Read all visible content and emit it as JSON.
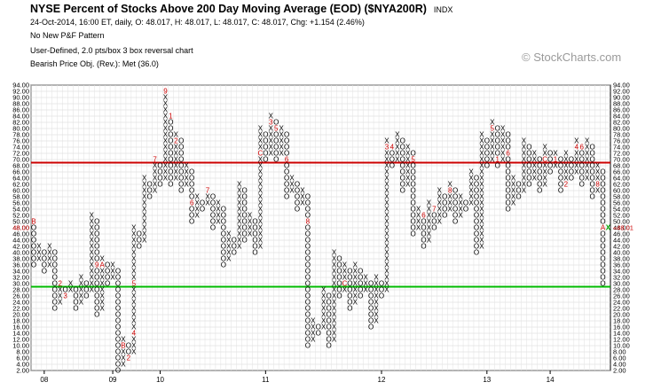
{
  "header": {
    "title": "NYSE Percent of Stocks Above 200 Day Moving Average (EOD) ($NYA200R)",
    "exchange": "INDX",
    "ohlc_line": "24-Oct-2014, 16:00 ET, daily, O: 48.017, H: 48.017, L: 48.017, C: 48.017, Chg: +1.154 (2.46%)",
    "pattern": "No New P&F Pattern",
    "settings": "User-Defined, 2.0 pts/box 3 box reversal chart",
    "objective": "Bearish Price Obj. (Rev.): Met (36.0)"
  },
  "watermark": "© StockCharts.com",
  "chart_data": {
    "type": "point-and-figure",
    "box_size": 2,
    "reversal": 3,
    "y_range": [
      2,
      94
    ],
    "y_ticks": [
      "2.00",
      "4.00",
      "6.00",
      "8.00",
      "10.00",
      "12.00",
      "14.00",
      "16.00",
      "18.00",
      "20.00",
      "22.00",
      "24.00",
      "26.00",
      "28.00",
      "30.00",
      "32.00",
      "34.00",
      "36.00",
      "38.00",
      "40.00",
      "42.00",
      "44.00",
      "46.00",
      "48.00",
      "50.00",
      "52.00",
      "54.00",
      "56.00",
      "58.00",
      "60.00",
      "62.00",
      "64.00",
      "66.00",
      "68.00",
      "70.00",
      "72.00",
      "74.00",
      "76.00",
      "78.00",
      "80.00",
      "82.00",
      "84.00",
      "86.00",
      "88.00",
      "90.00",
      "92.00",
      "94.00"
    ],
    "x_labels": [
      {
        "label": "08",
        "col": 2
      },
      {
        "label": "09",
        "col": 15
      },
      {
        "label": "10",
        "col": 24
      },
      {
        "label": "11",
        "col": 44
      },
      {
        "label": "12",
        "col": 66
      },
      {
        "label": "13",
        "col": 86
      },
      {
        "label": "14",
        "col": 98
      }
    ],
    "last_value_label": "48.01",
    "left_value_label": "48.00",
    "resistance_line": 69,
    "support_line": 29,
    "columns": [
      {
        "t": "O",
        "lo": 36,
        "hi": 50
      },
      {
        "t": "X",
        "lo": 38,
        "hi": 42
      },
      {
        "t": "O",
        "lo": 34,
        "hi": 40
      },
      {
        "t": "X",
        "lo": 36,
        "hi": 42
      },
      {
        "t": "O",
        "lo": 22,
        "hi": 40
      },
      {
        "t": "X",
        "lo": 24,
        "hi": 30
      },
      {
        "t": "O",
        "lo": 26,
        "hi": 28
      },
      {
        "t": "X",
        "lo": 28,
        "hi": 30
      },
      {
        "t": "O",
        "lo": 22,
        "hi": 28
      },
      {
        "t": "X",
        "lo": 24,
        "hi": 32
      },
      {
        "t": "O",
        "lo": 26,
        "hi": 30
      },
      {
        "t": "X",
        "lo": 28,
        "hi": 52
      },
      {
        "t": "O",
        "lo": 20,
        "hi": 50
      },
      {
        "t": "X",
        "lo": 22,
        "hi": 38
      },
      {
        "t": "O",
        "lo": 30,
        "hi": 36
      },
      {
        "t": "X",
        "lo": 32,
        "hi": 36
      },
      {
        "t": "O",
        "lo": 2,
        "hi": 34
      },
      {
        "t": "X",
        "lo": 4,
        "hi": 12
      },
      {
        "t": "O",
        "lo": 6,
        "hi": 10
      },
      {
        "t": "X",
        "lo": 8,
        "hi": 48
      },
      {
        "t": "O",
        "lo": 42,
        "hi": 46
      },
      {
        "t": "X",
        "lo": 44,
        "hi": 64
      },
      {
        "t": "O",
        "lo": 58,
        "hi": 62
      },
      {
        "t": "X",
        "lo": 60,
        "hi": 70
      },
      {
        "t": "O",
        "lo": 62,
        "hi": 68
      },
      {
        "t": "X",
        "lo": 64,
        "hi": 92
      },
      {
        "t": "O",
        "lo": 62,
        "hi": 84
      },
      {
        "t": "X",
        "lo": 64,
        "hi": 78
      },
      {
        "t": "O",
        "lo": 60,
        "hi": 76
      },
      {
        "t": "X",
        "lo": 62,
        "hi": 68
      },
      {
        "t": "O",
        "lo": 50,
        "hi": 66
      },
      {
        "t": "X",
        "lo": 52,
        "hi": 58
      },
      {
        "t": "O",
        "lo": 54,
        "hi": 56
      },
      {
        "t": "X",
        "lo": 56,
        "hi": 60
      },
      {
        "t": "O",
        "lo": 48,
        "hi": 58
      },
      {
        "t": "X",
        "lo": 50,
        "hi": 56
      },
      {
        "t": "O",
        "lo": 36,
        "hi": 54
      },
      {
        "t": "X",
        "lo": 38,
        "hi": 46
      },
      {
        "t": "O",
        "lo": 40,
        "hi": 44
      },
      {
        "t": "X",
        "lo": 42,
        "hi": 62
      },
      {
        "t": "O",
        "lo": 44,
        "hi": 60
      },
      {
        "t": "X",
        "lo": 46,
        "hi": 52
      },
      {
        "t": "O",
        "lo": 40,
        "hi": 50
      },
      {
        "t": "X",
        "lo": 42,
        "hi": 80
      },
      {
        "t": "O",
        "lo": 70,
        "hi": 78
      },
      {
        "t": "X",
        "lo": 72,
        "hi": 84
      },
      {
        "t": "O",
        "lo": 70,
        "hi": 82
      },
      {
        "t": "X",
        "lo": 72,
        "hi": 80
      },
      {
        "t": "O",
        "lo": 58,
        "hi": 78
      },
      {
        "t": "X",
        "lo": 60,
        "hi": 64
      },
      {
        "t": "O",
        "lo": 54,
        "hi": 62
      },
      {
        "t": "X",
        "lo": 56,
        "hi": 60
      },
      {
        "t": "O",
        "lo": 10,
        "hi": 58
      },
      {
        "t": "X",
        "lo": 12,
        "hi": 18
      },
      {
        "t": "O",
        "lo": 14,
        "hi": 16
      },
      {
        "t": "X",
        "lo": 16,
        "hi": 28
      },
      {
        "t": "O",
        "lo": 10,
        "hi": 26
      },
      {
        "t": "X",
        "lo": 12,
        "hi": 40
      },
      {
        "t": "O",
        "lo": 26,
        "hi": 38
      },
      {
        "t": "X",
        "lo": 28,
        "hi": 36
      },
      {
        "t": "O",
        "lo": 22,
        "hi": 34
      },
      {
        "t": "X",
        "lo": 24,
        "hi": 36
      },
      {
        "t": "O",
        "lo": 26,
        "hi": 34
      },
      {
        "t": "X",
        "lo": 28,
        "hi": 32
      },
      {
        "t": "O",
        "lo": 16,
        "hi": 30
      },
      {
        "t": "X",
        "lo": 18,
        "hi": 32
      },
      {
        "t": "O",
        "lo": 26,
        "hi": 30
      },
      {
        "t": "X",
        "lo": 28,
        "hi": 76
      },
      {
        "t": "O",
        "lo": 68,
        "hi": 74
      },
      {
        "t": "X",
        "lo": 70,
        "hi": 78
      },
      {
        "t": "O",
        "lo": 60,
        "hi": 76
      },
      {
        "t": "X",
        "lo": 62,
        "hi": 74
      },
      {
        "t": "O",
        "lo": 46,
        "hi": 72
      },
      {
        "t": "X",
        "lo": 48,
        "hi": 54
      },
      {
        "t": "O",
        "lo": 42,
        "hi": 52
      },
      {
        "t": "X",
        "lo": 44,
        "hi": 56
      },
      {
        "t": "O",
        "lo": 48,
        "hi": 54
      },
      {
        "t": "X",
        "lo": 50,
        "hi": 60
      },
      {
        "t": "O",
        "lo": 52,
        "hi": 58
      },
      {
        "t": "X",
        "lo": 54,
        "hi": 62
      },
      {
        "t": "O",
        "lo": 50,
        "hi": 60
      },
      {
        "t": "X",
        "lo": 52,
        "hi": 58
      },
      {
        "t": "O",
        "lo": 54,
        "hi": 56
      },
      {
        "t": "X",
        "lo": 56,
        "hi": 66
      },
      {
        "t": "O",
        "lo": 40,
        "hi": 64
      },
      {
        "t": "X",
        "lo": 42,
        "hi": 78
      },
      {
        "t": "O",
        "lo": 68,
        "hi": 76
      },
      {
        "t": "X",
        "lo": 70,
        "hi": 82
      },
      {
        "t": "O",
        "lo": 68,
        "hi": 80
      },
      {
        "t": "X",
        "lo": 70,
        "hi": 80
      },
      {
        "t": "O",
        "lo": 54,
        "hi": 78
      },
      {
        "t": "X",
        "lo": 56,
        "hi": 64
      },
      {
        "t": "O",
        "lo": 58,
        "hi": 62
      },
      {
        "t": "X",
        "lo": 60,
        "hi": 76
      },
      {
        "t": "O",
        "lo": 62,
        "hi": 74
      },
      {
        "t": "X",
        "lo": 64,
        "hi": 72
      },
      {
        "t": "O",
        "lo": 60,
        "hi": 70
      },
      {
        "t": "X",
        "lo": 62,
        "hi": 74
      },
      {
        "t": "O",
        "lo": 66,
        "hi": 72
      },
      {
        "t": "X",
        "lo": 68,
        "hi": 72
      },
      {
        "t": "O",
        "lo": 60,
        "hi": 70
      },
      {
        "t": "X",
        "lo": 62,
        "hi": 72
      },
      {
        "t": "O",
        "lo": 64,
        "hi": 70
      },
      {
        "t": "X",
        "lo": 66,
        "hi": 76
      },
      {
        "t": "O",
        "lo": 62,
        "hi": 74
      },
      {
        "t": "X",
        "lo": 64,
        "hi": 76
      },
      {
        "t": "O",
        "lo": 58,
        "hi": 74
      },
      {
        "t": "X",
        "lo": 60,
        "hi": 68
      },
      {
        "t": "O",
        "lo": 30,
        "hi": 66
      },
      {
        "t": "X",
        "lo": 48,
        "hi": 48
      }
    ],
    "month_markers": [
      {
        "col": 0,
        "v": 50,
        "m": "B"
      },
      {
        "col": 0,
        "v": 30,
        "m": "1"
      },
      {
        "col": 2,
        "v": 42,
        "m": "C"
      },
      {
        "col": 3,
        "v": 28,
        "m": "4"
      },
      {
        "col": 5,
        "v": 30,
        "m": "2"
      },
      {
        "col": 6,
        "v": 26,
        "m": "3"
      },
      {
        "col": 9,
        "v": 44,
        "m": "5"
      },
      {
        "col": 10,
        "v": 44,
        "m": "6"
      },
      {
        "col": 10,
        "v": 32,
        "m": "8"
      },
      {
        "col": 12,
        "v": 36,
        "m": "9"
      },
      {
        "col": 13,
        "v": 36,
        "m": "A"
      },
      {
        "col": 17,
        "v": 10,
        "m": "B"
      },
      {
        "col": 18,
        "v": 6,
        "m": "2"
      },
      {
        "col": 17,
        "v": 18,
        "m": "A"
      },
      {
        "col": 19,
        "v": 14,
        "m": "4"
      },
      {
        "col": 19,
        "v": 30,
        "m": "5"
      },
      {
        "col": 23,
        "v": 70,
        "m": "7"
      },
      {
        "col": 25,
        "v": 92,
        "m": "9"
      },
      {
        "col": 26,
        "v": 84,
        "m": "1"
      },
      {
        "col": 27,
        "v": 84,
        "m": "4"
      },
      {
        "col": 28,
        "v": 84,
        "m": "5"
      },
      {
        "col": 27,
        "v": 76,
        "m": "2"
      },
      {
        "col": 29,
        "v": 58,
        "m": "6"
      },
      {
        "col": 30,
        "v": 56,
        "m": "6"
      },
      {
        "col": 33,
        "v": 60,
        "m": "7"
      },
      {
        "col": 41,
        "v": 42,
        "m": "9"
      },
      {
        "col": 42,
        "v": 72,
        "m": "A"
      },
      {
        "col": 43,
        "v": 72,
        "m": "C"
      },
      {
        "col": 44,
        "v": 84,
        "m": "2"
      },
      {
        "col": 45,
        "v": 82,
        "m": "3"
      },
      {
        "col": 46,
        "v": 80,
        "m": "5"
      },
      {
        "col": 48,
        "v": 70,
        "m": "6"
      },
      {
        "col": 52,
        "v": 50,
        "m": "8"
      },
      {
        "col": 55,
        "v": 10,
        "m": "A"
      },
      {
        "col": 59,
        "v": 30,
        "m": "C"
      },
      {
        "col": 61,
        "v": 40,
        "m": "1"
      },
      {
        "col": 67,
        "v": 74,
        "m": "3"
      },
      {
        "col": 68,
        "v": 74,
        "m": "4"
      },
      {
        "col": 72,
        "v": 70,
        "m": "5"
      },
      {
        "col": 74,
        "v": 52,
        "m": "6"
      },
      {
        "col": 76,
        "v": 54,
        "m": "7"
      },
      {
        "col": 79,
        "v": 60,
        "m": "8"
      },
      {
        "col": 80,
        "v": 64,
        "m": "C"
      },
      {
        "col": 84,
        "v": 70,
        "m": "9"
      },
      {
        "col": 86,
        "v": 80,
        "m": "4"
      },
      {
        "col": 87,
        "v": 80,
        "m": "5"
      },
      {
        "col": 88,
        "v": 70,
        "m": "1"
      },
      {
        "col": 90,
        "v": 72,
        "m": "6"
      },
      {
        "col": 92,
        "v": 56,
        "m": "9"
      },
      {
        "col": 96,
        "v": 72,
        "m": "B"
      },
      {
        "col": 97,
        "v": 70,
        "m": "C"
      },
      {
        "col": 99,
        "v": 70,
        "m": "1"
      },
      {
        "col": 101,
        "v": 62,
        "m": "2"
      },
      {
        "col": 102,
        "v": 76,
        "m": "3"
      },
      {
        "col": 103,
        "v": 74,
        "m": "4"
      },
      {
        "col": 104,
        "v": 74,
        "m": "6"
      },
      {
        "col": 106,
        "v": 78,
        "m": "7"
      },
      {
        "col": 107,
        "v": 62,
        "m": "8"
      },
      {
        "col": 108,
        "v": 48,
        "m": "A"
      }
    ]
  }
}
